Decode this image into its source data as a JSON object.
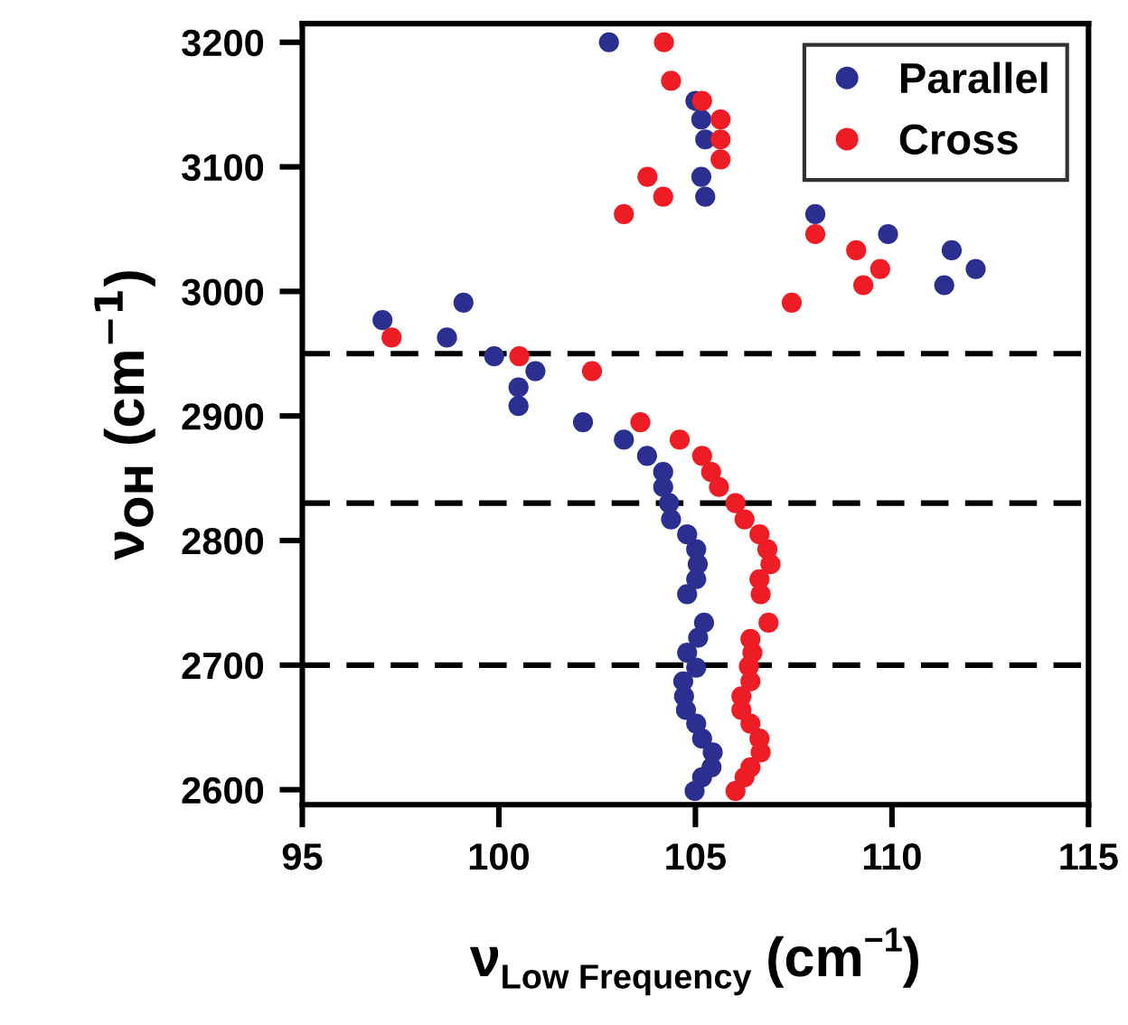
{
  "chart_data": {
    "type": "scatter",
    "xlabel": "ν$_{Low Frequency}$ (cm$^{−1}$)",
    "ylabel": "ν$_{OH}$ (cm$^{−1}$)",
    "xlim": [
      95,
      115
    ],
    "xticks": [
      95,
      100,
      105,
      110,
      115
    ],
    "ylim": [
      2588,
      3215
    ],
    "yticks": [
      2600,
      2700,
      2800,
      2900,
      3000,
      3100,
      3200
    ],
    "grid": false,
    "legend": "top right",
    "marker": "circle",
    "ref_lines": [
      {
        "axis": "y",
        "value": 2950,
        "line_style": "dashed",
        "color": "#000000"
      },
      {
        "axis": "y",
        "value": 2830,
        "line_style": "dashed",
        "color": "#000000"
      },
      {
        "axis": "y",
        "value": 2700,
        "line_style": "dashed",
        "color": "#000000"
      }
    ],
    "series": [
      {
        "name": "Parallel",
        "color": "#2b2f8f",
        "x": [
          102.8,
          105.0,
          105.15,
          105.25,
          105.15,
          105.25,
          108.05,
          109.9,
          111.52,
          112.13,
          111.33,
          99.1,
          97.04,
          98.68,
          99.88,
          100.93,
          100.5,
          100.5,
          102.14,
          103.18,
          103.77,
          104.18,
          104.18,
          104.33,
          104.38,
          104.79,
          105.02,
          105.06,
          105.02,
          104.79,
          105.22,
          105.07,
          104.79,
          105.02,
          104.69,
          104.71,
          104.76,
          105.02,
          105.17,
          105.44,
          105.41,
          105.17,
          104.98
        ],
        "values": [
          3200,
          3153,
          3138,
          3122,
          3092,
          3076,
          3062,
          3046,
          3033,
          3018,
          3005,
          2991,
          2977,
          2963,
          2948,
          2936,
          2923,
          2908,
          2895,
          2881,
          2868,
          2855,
          2843,
          2830,
          2817,
          2805,
          2793,
          2781,
          2769,
          2757,
          2734,
          2722,
          2710,
          2698,
          2687,
          2675,
          2664,
          2653,
          2641,
          2630,
          2618,
          2610,
          2599
        ]
      },
      {
        "name": "Cross",
        "color": "#ee1c25",
        "x": [
          104.2,
          104.38,
          105.17,
          105.64,
          105.64,
          105.64,
          103.78,
          104.18,
          103.18,
          108.05,
          109.09,
          109.7,
          109.27,
          107.45,
          97.27,
          100.52,
          102.37,
          103.6,
          104.6,
          105.17,
          105.4,
          105.6,
          106.02,
          106.25,
          106.63,
          106.83,
          106.91,
          106.63,
          106.66,
          106.86,
          106.4,
          106.45,
          106.36,
          106.4,
          106.17,
          106.17,
          106.4,
          106.63,
          106.66,
          106.4,
          106.25,
          106.02
        ],
        "values": [
          3200,
          3169,
          3153,
          3138,
          3122,
          3106,
          3092,
          3076,
          3062,
          3046,
          3033,
          3018,
          3005,
          2991,
          2963,
          2948,
          2936,
          2895,
          2881,
          2868,
          2855,
          2843,
          2830,
          2817,
          2805,
          2793,
          2781,
          2769,
          2757,
          2734,
          2721,
          2710,
          2699,
          2687,
          2675,
          2664,
          2653,
          2641,
          2630,
          2618,
          2610,
          2599
        ]
      }
    ]
  }
}
